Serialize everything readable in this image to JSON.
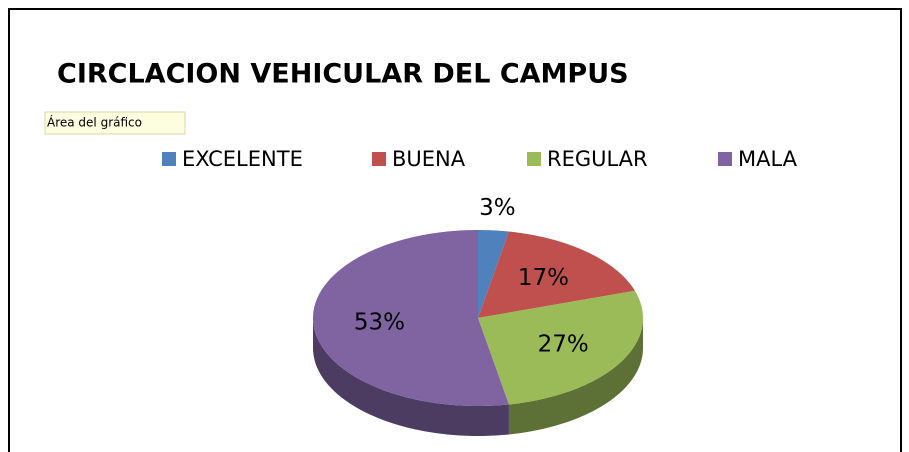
{
  "chart_data": {
    "type": "pie",
    "title": "CIRCLACION VEHICULAR DEL CAMPUS",
    "annotation": "Área del gráfico",
    "categories": [
      "EXCELENTE",
      "BUENA",
      "REGULAR",
      "MALA"
    ],
    "values": [
      3,
      17,
      27,
      53
    ],
    "value_labels": [
      "3%",
      "17%",
      "27%",
      "53%"
    ],
    "colors": [
      "#4f81bd",
      "#c0504d",
      "#9bbb59",
      "#8064a2"
    ],
    "legend": "top"
  }
}
